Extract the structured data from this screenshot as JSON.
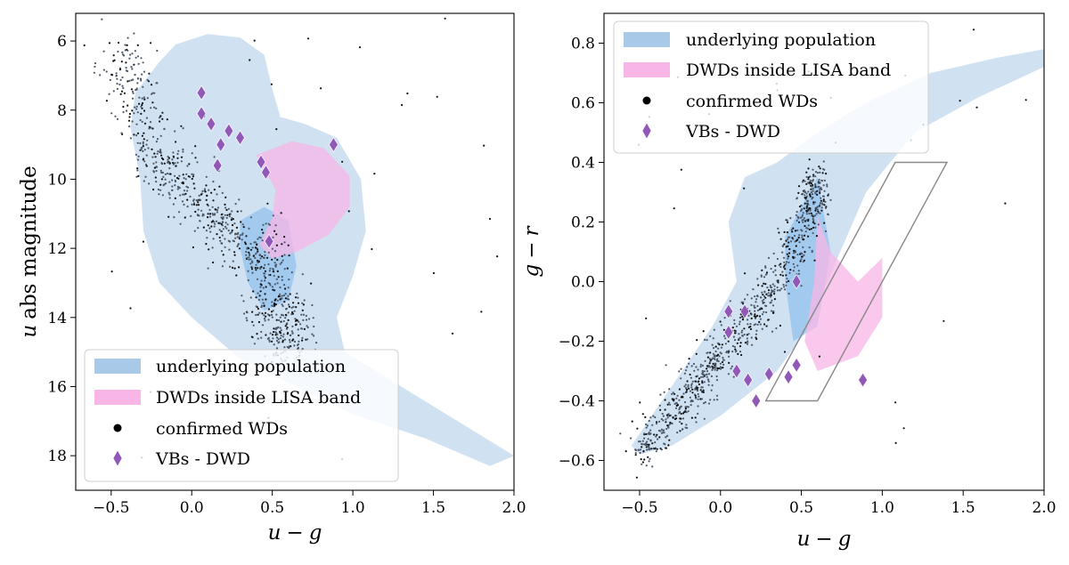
{
  "figure_description_free": true,
  "colors": {
    "population": "#a9c9e8",
    "population_core": "#7bb8ec",
    "lisa": "#f7b6e6",
    "wd": "#111111",
    "wd_gray": "#4c5a6b",
    "vb": "#9158b8"
  },
  "legend": {
    "population": "underlying population",
    "lisa": "DWDs inside LISA band",
    "wd": "confirmed WDs",
    "vb": "VBs - DWD"
  },
  "chart_data": [
    {
      "type": "scatter",
      "panel": "left",
      "xlabel_var1": "u",
      "xlabel_op": "−",
      "xlabel_var2": "g",
      "ylabel_var": "u",
      "ylabel_rest": "abs magnitude",
      "xlim": [
        -0.72,
        2.0
      ],
      "ylim": [
        19.0,
        5.2
      ],
      "y_inverted": true,
      "xticks": [
        -0.5,
        0.0,
        0.5,
        1.0,
        1.5,
        2.0
      ],
      "xtick_labels": [
        "−0.5",
        "0.0",
        "0.5",
        "1.0",
        "1.5",
        "2.0"
      ],
      "yticks": [
        6,
        8,
        10,
        12,
        14,
        16,
        18
      ],
      "ytick_labels": [
        "6",
        "8",
        "10",
        "12",
        "14",
        "16",
        "18"
      ],
      "legend_position": "lower-left",
      "population_contour": [
        [
          -0.35,
          7.5
        ],
        [
          -0.2,
          6.6
        ],
        [
          -0.1,
          6.1
        ],
        [
          0.1,
          5.8
        ],
        [
          0.3,
          5.9
        ],
        [
          0.45,
          6.4
        ],
        [
          0.5,
          7.4
        ],
        [
          0.55,
          8.2
        ],
        [
          0.7,
          8.4
        ],
        [
          0.9,
          8.8
        ],
        [
          1.05,
          10.0
        ],
        [
          1.08,
          11.5
        ],
        [
          1.0,
          12.8
        ],
        [
          0.9,
          14.0
        ],
        [
          0.95,
          15.0
        ],
        [
          1.3,
          16.0
        ],
        [
          1.65,
          17.0
        ],
        [
          2.0,
          18.0
        ],
        [
          1.85,
          18.3
        ],
        [
          1.45,
          17.5
        ],
        [
          1.0,
          16.8
        ],
        [
          0.65,
          16.0
        ],
        [
          0.3,
          15.2
        ],
        [
          0.0,
          14.0
        ],
        [
          -0.2,
          13.0
        ],
        [
          -0.3,
          11.5
        ],
        [
          -0.32,
          10.0
        ],
        [
          -0.38,
          8.5
        ]
      ],
      "population_core": [
        [
          0.3,
          11.2
        ],
        [
          0.45,
          10.8
        ],
        [
          0.6,
          11.2
        ],
        [
          0.65,
          12.5
        ],
        [
          0.6,
          13.5
        ],
        [
          0.45,
          13.8
        ],
        [
          0.35,
          13.0
        ],
        [
          0.3,
          12.0
        ]
      ],
      "lisa_contour": [
        [
          0.4,
          9.3
        ],
        [
          0.62,
          8.9
        ],
        [
          0.82,
          9.1
        ],
        [
          0.98,
          9.9
        ],
        [
          0.98,
          10.8
        ],
        [
          0.85,
          11.6
        ],
        [
          0.65,
          12.1
        ],
        [
          0.5,
          12.3
        ],
        [
          0.42,
          11.9
        ],
        [
          0.5,
          11.1
        ],
        [
          0.52,
          10.3
        ],
        [
          0.45,
          9.7
        ]
      ],
      "wd_ridge": [
        [
          -0.45,
          6.2
        ],
        [
          -0.35,
          7.6
        ],
        [
          -0.25,
          9.0
        ],
        [
          -0.1,
          10.1
        ],
        [
          0.1,
          10.9
        ],
        [
          0.3,
          11.6
        ],
        [
          0.45,
          12.4
        ],
        [
          0.5,
          13.4
        ],
        [
          0.55,
          14.2
        ],
        [
          0.6,
          14.9
        ]
      ],
      "vb_points": [
        [
          0.06,
          7.5
        ],
        [
          0.06,
          8.1
        ],
        [
          0.12,
          8.4
        ],
        [
          0.18,
          9.0
        ],
        [
          0.23,
          8.6
        ],
        [
          0.3,
          8.8
        ],
        [
          0.16,
          9.6
        ],
        [
          0.43,
          9.5
        ],
        [
          0.46,
          9.8
        ],
        [
          0.48,
          11.8
        ],
        [
          0.88,
          9.0
        ]
      ]
    },
    {
      "type": "scatter",
      "panel": "right",
      "xlabel_var1": "u",
      "xlabel_op": "−",
      "xlabel_var2": "g",
      "ylabel_var1": "g",
      "ylabel_op": "−",
      "ylabel_var2": "r",
      "xlim": [
        -0.72,
        2.0
      ],
      "ylim": [
        -0.7,
        0.9
      ],
      "y_inverted": false,
      "xticks": [
        -0.5,
        0.0,
        0.5,
        1.0,
        1.5,
        2.0
      ],
      "xtick_labels": [
        "−0.5",
        "0.0",
        "0.5",
        "1.0",
        "1.5",
        "2.0"
      ],
      "yticks": [
        -0.6,
        -0.4,
        -0.2,
        0.0,
        0.2,
        0.4,
        0.6,
        0.8
      ],
      "ytick_labels": [
        "−0.6",
        "−0.4",
        "−0.2",
        "0.0",
        "0.2",
        "0.4",
        "0.6",
        "0.8"
      ],
      "legend_position": "upper-left",
      "population_contour": [
        [
          -0.55,
          -0.55
        ],
        [
          -0.3,
          -0.35
        ],
        [
          -0.05,
          -0.15
        ],
        [
          0.1,
          0.0
        ],
        [
          0.05,
          0.2
        ],
        [
          0.15,
          0.35
        ],
        [
          0.35,
          0.4
        ],
        [
          0.6,
          0.5
        ],
        [
          0.9,
          0.6
        ],
        [
          1.3,
          0.7
        ],
        [
          1.7,
          0.75
        ],
        [
          2.0,
          0.78
        ],
        [
          2.0,
          0.72
        ],
        [
          1.6,
          0.62
        ],
        [
          1.2,
          0.5
        ],
        [
          0.9,
          0.3
        ],
        [
          0.7,
          0.05
        ],
        [
          0.55,
          -0.15
        ],
        [
          0.35,
          -0.3
        ],
        [
          0.0,
          -0.45
        ],
        [
          -0.3,
          -0.55
        ],
        [
          -0.5,
          -0.58
        ]
      ],
      "population_core": [
        [
          0.4,
          0.15
        ],
        [
          0.6,
          0.35
        ],
        [
          0.68,
          0.1
        ],
        [
          0.6,
          -0.15
        ],
        [
          0.45,
          -0.2
        ],
        [
          0.4,
          0.0
        ]
      ],
      "lisa_contour": [
        [
          0.6,
          0.22
        ],
        [
          0.68,
          0.1
        ],
        [
          0.85,
          0.0
        ],
        [
          1.0,
          0.08
        ],
        [
          1.0,
          -0.12
        ],
        [
          0.85,
          -0.25
        ],
        [
          0.6,
          -0.3
        ],
        [
          0.52,
          -0.2
        ],
        [
          0.58,
          0.0
        ]
      ],
      "box_vertices": [
        [
          0.28,
          -0.4
        ],
        [
          0.6,
          -0.4
        ],
        [
          1.4,
          0.4
        ],
        [
          1.08,
          0.4
        ]
      ],
      "wd_ridge": [
        [
          -0.5,
          -0.58
        ],
        [
          -0.3,
          -0.45
        ],
        [
          -0.1,
          -0.32
        ],
        [
          0.1,
          -0.18
        ],
        [
          0.3,
          -0.05
        ],
        [
          0.45,
          0.1
        ],
        [
          0.55,
          0.25
        ],
        [
          0.6,
          0.35
        ]
      ],
      "vb_points": [
        [
          0.05,
          -0.1
        ],
        [
          0.05,
          -0.17
        ],
        [
          0.15,
          -0.1
        ],
        [
          0.1,
          -0.3
        ],
        [
          0.17,
          -0.33
        ],
        [
          0.22,
          -0.4
        ],
        [
          0.3,
          -0.31
        ],
        [
          0.42,
          -0.32
        ],
        [
          0.47,
          -0.28
        ],
        [
          0.47,
          0.0
        ],
        [
          0.88,
          -0.33
        ]
      ]
    }
  ]
}
